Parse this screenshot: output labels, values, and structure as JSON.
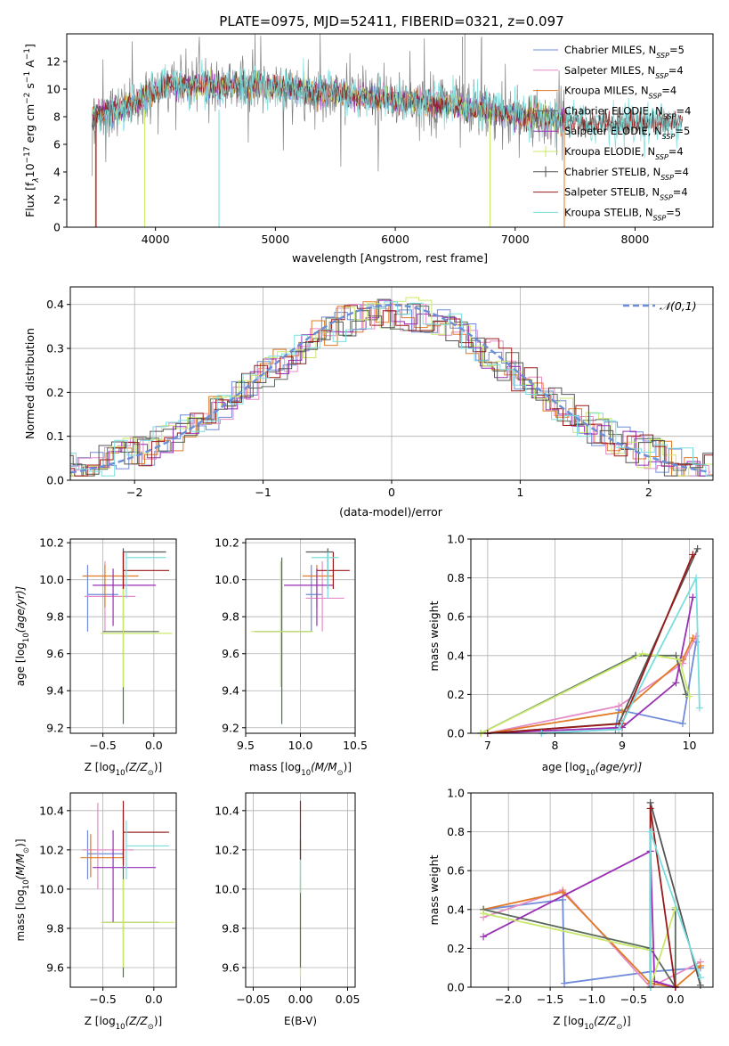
{
  "figure": {
    "title": "PLATE=0975, MJD=52411, FIBERID=0321, z=0.097"
  },
  "colors": {
    "chabrier_miles": "#6f8bd9",
    "salpeter_miles": "#e68cc6",
    "kroupa_miles": "#e07a26",
    "chabrier_elodie": "#5b6b5b",
    "salpeter_elodie": "#9a2fb5",
    "kroupa_elodie": "#c9e86a",
    "chabrier_stelib": "#555555",
    "salpeter_stelib": "#9a1a1a",
    "kroupa_stelib": "#79dede",
    "data": "#808080",
    "gauss": "#6a8fd8"
  },
  "chart_data": [
    {
      "id": "spectrum",
      "type": "line",
      "xlabel": "wavelength [Angstrom, rest frame]",
      "ylabel_parts": [
        "Flux [f",
        "λ",
        "10",
        "−17",
        " erg cm",
        "−2",
        " s",
        "−1",
        " A",
        "−1",
        "]"
      ],
      "xlim": [
        3260,
        8650
      ],
      "ylim": [
        0,
        14
      ],
      "xticks": [
        4000,
        5000,
        6000,
        7000,
        8000
      ],
      "yticks": [
        0,
        2,
        4,
        6,
        8,
        10,
        12
      ],
      "legend_position": "upper-right",
      "legend": [
        {
          "key": "chabrier_miles",
          "label": "Chabrier MILES, N",
          "sub": "SSP",
          "suffix": "=5",
          "style": "line"
        },
        {
          "key": "salpeter_miles",
          "label": "Salpeter MILES, N",
          "sub": "SSP",
          "suffix": "=4",
          "style": "line"
        },
        {
          "key": "kroupa_miles",
          "label": "Kroupa MILES, N",
          "sub": "SSP",
          "suffix": "=4",
          "style": "line"
        },
        {
          "key": "chabrier_elodie",
          "label": "Chabrier ELODIE, N",
          "sub": "SSP",
          "suffix": "=4",
          "style": "cross"
        },
        {
          "key": "salpeter_elodie",
          "label": "Salpeter ELODIE, N",
          "sub": "SSP",
          "suffix": "=5",
          "style": "cross"
        },
        {
          "key": "kroupa_elodie",
          "label": "Kroupa ELODIE, N",
          "sub": "SSP",
          "suffix": "=4",
          "style": "cross"
        },
        {
          "key": "chabrier_stelib",
          "label": "Chabrier STELIB, N",
          "sub": "SSP",
          "suffix": "=4",
          "style": "cross"
        },
        {
          "key": "salpeter_stelib",
          "label": "Salpeter STELIB, N",
          "sub": "SSP",
          "suffix": "=4",
          "style": "line"
        },
        {
          "key": "kroupa_stelib",
          "label": "Kroupa STELIB, N",
          "sub": "SSP",
          "suffix": "=5",
          "style": "line"
        }
      ],
      "continuum": [
        [
          3500,
          8.0
        ],
        [
          3600,
          8.4
        ],
        [
          3800,
          8.8
        ],
        [
          3950,
          9.6
        ],
        [
          4100,
          10.4
        ],
        [
          4300,
          10.3
        ],
        [
          4600,
          10.3
        ],
        [
          4900,
          10.2
        ],
        [
          5200,
          9.9
        ],
        [
          5600,
          9.6
        ],
        [
          6000,
          9.2
        ],
        [
          6400,
          8.9
        ],
        [
          6800,
          8.4
        ],
        [
          7200,
          7.9
        ],
        [
          7600,
          7.5
        ],
        [
          8000,
          7.6
        ],
        [
          8400,
          7.6
        ]
      ],
      "noise_amplitude": 1.6,
      "model_noise_amplitude": 0.6,
      "data_spikes": [
        [
          6560,
          13.8
        ],
        [
          6580,
          14
        ],
        [
          6720,
          13.8
        ]
      ],
      "model_drops": [
        {
          "x": 3500,
          "key": "kroupa_miles"
        },
        {
          "x": 3505,
          "key": "salpeter_stelib"
        },
        {
          "x": 3910,
          "key": "kroupa_elodie"
        },
        {
          "x": 4530,
          "key": "kroupa_stelib"
        },
        {
          "x": 6790,
          "key": "kroupa_elodie"
        },
        {
          "x": 7410,
          "key": "kroupa_miles"
        }
      ],
      "data_xrange": [
        3470,
        7420
      ],
      "model_xrange": [
        3470,
        8400
      ]
    },
    {
      "id": "residuals",
      "type": "step",
      "xlabel": "(data-model)/error",
      "ylabel": "Normed distribution",
      "xlim": [
        -2.5,
        2.5
      ],
      "ylim": [
        0,
        0.44
      ],
      "xticks": [
        -2,
        -1,
        0,
        1,
        2
      ],
      "yticks": [
        0,
        0.1,
        0.2,
        0.3,
        0.4
      ],
      "legend": "𝒩(0,1)",
      "legend_position": "upper-right",
      "bin_width": 0.1,
      "gauss_sigma": 1.0
    },
    {
      "id": "age_vs_Z",
      "type": "errorbar",
      "xlabel_parts": [
        "Z [log",
        "10",
        "(Z/Z",
        "⊙",
        ")]"
      ],
      "ylabel_parts": [
        "age  [log",
        "10",
        "(age/yr)]"
      ],
      "xlim": [
        -0.82,
        0.22
      ],
      "ylim": [
        9.17,
        10.22
      ],
      "xticks": [
        -0.5,
        0.0
      ],
      "yticks": [
        9.2,
        9.4,
        9.6,
        9.8,
        10.0,
        10.2
      ],
      "points": [
        {
          "key": "chabrier_miles",
          "x": -0.65,
          "y": 9.92,
          "xl": -0.65,
          "xh": -0.35,
          "yl": 9.72,
          "yh": 10.08
        },
        {
          "key": "salpeter_miles",
          "x": -0.48,
          "y": 9.91,
          "xl": -0.68,
          "xh": -0.18,
          "yl": 9.72,
          "yh": 10.1
        },
        {
          "key": "kroupa_miles",
          "x": -0.48,
          "y": 10.02,
          "xl": -0.7,
          "xh": -0.15,
          "yl": 9.85,
          "yh": 10.08
        },
        {
          "key": "chabrier_elodie",
          "x": -0.3,
          "y": 9.72,
          "xl": -0.5,
          "xh": 0.05,
          "yl": 9.22,
          "yh": 10.15
        },
        {
          "key": "salpeter_elodie",
          "x": -0.4,
          "y": 9.97,
          "xl": -0.6,
          "xh": 0.02,
          "yl": 9.75,
          "yh": 10.06
        },
        {
          "key": "kroupa_elodie",
          "x": -0.3,
          "y": 9.71,
          "xl": -0.52,
          "xh": 0.18,
          "yl": 9.42,
          "yh": 10.1
        },
        {
          "key": "chabrier_stelib",
          "x": -0.3,
          "y": 10.15,
          "xl": -0.3,
          "xh": 0.12,
          "yl": 9.95,
          "yh": 10.17
        },
        {
          "key": "salpeter_stelib",
          "x": -0.3,
          "y": 10.05,
          "xl": -0.3,
          "xh": 0.15,
          "yl": 9.95,
          "yh": 10.15
        },
        {
          "key": "kroupa_stelib",
          "x": -0.27,
          "y": 10.12,
          "xl": -0.27,
          "xh": 0.12,
          "yl": 9.9,
          "yh": 10.15
        }
      ]
    },
    {
      "id": "age_vs_mass",
      "type": "errorbar",
      "xlabel_parts": [
        "mass [log",
        "10",
        "(M/M",
        "⊙",
        ")]"
      ],
      "ylabel_parts": [],
      "xlim": [
        9.5,
        10.5
      ],
      "ylim": [
        9.17,
        10.22
      ],
      "xticks": [
        9.5,
        10.0,
        10.5
      ],
      "yticks": [
        9.2,
        9.4,
        9.6,
        9.8,
        10.0,
        10.2
      ],
      "points": [
        {
          "key": "chabrier_miles",
          "x": 10.1,
          "y": 9.92,
          "xl": 10.05,
          "xh": 10.2,
          "yl": 9.72,
          "yh": 10.08
        },
        {
          "key": "salpeter_miles",
          "x": 10.2,
          "y": 9.9,
          "xl": 10.05,
          "xh": 10.4,
          "yl": 9.72,
          "yh": 10.1
        },
        {
          "key": "kroupa_miles",
          "x": 10.15,
          "y": 10.02,
          "xl": 10.02,
          "xh": 10.3,
          "yl": 9.85,
          "yh": 10.08
        },
        {
          "key": "chabrier_elodie",
          "x": 9.83,
          "y": 9.72,
          "xl": 9.58,
          "xh": 10.1,
          "yl": 9.22,
          "yh": 10.12
        },
        {
          "key": "salpeter_elodie",
          "x": 10.15,
          "y": 9.97,
          "xl": 9.85,
          "xh": 10.3,
          "yl": 9.75,
          "yh": 10.06
        },
        {
          "key": "kroupa_elodie",
          "x": 9.82,
          "y": 9.72,
          "xl": 9.55,
          "xh": 10.12,
          "yl": 9.42,
          "yh": 10.1
        },
        {
          "key": "chabrier_stelib",
          "x": 10.25,
          "y": 10.15,
          "xl": 10.05,
          "xh": 10.3,
          "yl": 9.95,
          "yh": 10.17
        },
        {
          "key": "salpeter_stelib",
          "x": 10.3,
          "y": 10.05,
          "xl": 10.15,
          "xh": 10.45,
          "yl": 9.95,
          "yh": 10.15
        },
        {
          "key": "kroupa_stelib",
          "x": 10.25,
          "y": 10.12,
          "xl": 10.1,
          "xh": 10.35,
          "yl": 9.9,
          "yh": 10.15
        }
      ]
    },
    {
      "id": "weight_vs_age",
      "type": "line",
      "xlabel_parts": [
        "age  [log",
        "10",
        "(age/yr)]"
      ],
      "ylabel": "mass weight",
      "xlim": [
        6.75,
        10.35
      ],
      "ylim": [
        0,
        1.0
      ],
      "xticks": [
        7,
        8,
        9,
        10
      ],
      "yticks": [
        0.0,
        0.2,
        0.4,
        0.6,
        0.8,
        1.0
      ],
      "series": [
        {
          "key": "chabrier_miles",
          "x": [
            7.8,
            8.9,
            8.95,
            9.9,
            10.1
          ],
          "y": [
            0.0,
            0.02,
            0.12,
            0.05,
            0.47
          ]
        },
        {
          "key": "salpeter_miles",
          "x": [
            7.0,
            8.95,
            9.9,
            10.1
          ],
          "y": [
            0.0,
            0.14,
            0.36,
            0.5
          ]
        },
        {
          "key": "kroupa_miles",
          "x": [
            7.0,
            9.0,
            9.9,
            10.05
          ],
          "y": [
            0.0,
            0.11,
            0.38,
            0.49
          ]
        },
        {
          "key": "chabrier_elodie",
          "x": [
            6.9,
            9.2,
            9.8,
            9.95
          ],
          "y": [
            0.0,
            0.4,
            0.4,
            0.2
          ]
        },
        {
          "key": "salpeter_elodie",
          "x": [
            7.0,
            9.0,
            9.8,
            10.05
          ],
          "y": [
            0.0,
            0.03,
            0.26,
            0.7
          ]
        },
        {
          "key": "kroupa_elodie",
          "x": [
            6.9,
            9.3,
            9.85,
            10.0
          ],
          "y": [
            0.0,
            0.41,
            0.38,
            0.19
          ]
        },
        {
          "key": "chabrier_stelib",
          "x": [
            7.0,
            8.95,
            10.12
          ],
          "y": [
            0.0,
            0.05,
            0.95
          ]
        },
        {
          "key": "salpeter_stelib",
          "x": [
            7.0,
            9.0,
            10.05
          ],
          "y": [
            0.0,
            0.05,
            0.92
          ]
        },
        {
          "key": "kroupa_stelib",
          "x": [
            7.8,
            8.95,
            10.1,
            10.15
          ],
          "y": [
            0.0,
            0.02,
            0.8,
            0.13
          ]
        }
      ]
    },
    {
      "id": "mass_vs_Z",
      "type": "errorbar",
      "xlabel_parts": [
        "Z [log",
        "10",
        "(Z/Z",
        "⊙",
        ")]"
      ],
      "ylabel_parts": [
        "mass [log",
        "10",
        "(M/M",
        "⊙",
        ")]"
      ],
      "xlim": [
        -0.82,
        0.22
      ],
      "ylim": [
        9.5,
        10.49
      ],
      "xticks": [
        -0.5,
        0.0
      ],
      "yticks": [
        9.6,
        9.8,
        10.0,
        10.2,
        10.4
      ],
      "points": [
        {
          "key": "chabrier_miles",
          "x": -0.65,
          "y": 10.18,
          "xl": -0.65,
          "xh": -0.3,
          "yl": 10.05,
          "yh": 10.3
        },
        {
          "key": "salpeter_miles",
          "x": -0.55,
          "y": 10.2,
          "xl": -0.7,
          "xh": -0.2,
          "yl": 10.0,
          "yh": 10.44
        },
        {
          "key": "kroupa_miles",
          "x": -0.62,
          "y": 10.16,
          "xl": -0.72,
          "xh": -0.3,
          "yl": 10.06,
          "yh": 10.28
        },
        {
          "key": "chabrier_elodie",
          "x": -0.3,
          "y": 9.83,
          "xl": -0.5,
          "xh": 0.05,
          "yl": 9.55,
          "yh": 10.25
        },
        {
          "key": "salpeter_elodie",
          "x": -0.4,
          "y": 10.11,
          "xl": -0.6,
          "xh": 0.02,
          "yl": 9.83,
          "yh": 10.3
        },
        {
          "key": "kroupa_elodie",
          "x": -0.3,
          "y": 9.83,
          "xl": -0.52,
          "xh": 0.2,
          "yl": 9.6,
          "yh": 10.05
        },
        {
          "key": "chabrier_stelib",
          "x": -0.3,
          "y": 10.29,
          "xl": -0.3,
          "xh": 0.12,
          "yl": 10.15,
          "yh": 10.4
        },
        {
          "key": "salpeter_stelib",
          "x": -0.3,
          "y": 10.29,
          "xl": -0.3,
          "xh": 0.15,
          "yl": 10.12,
          "yh": 10.45
        },
        {
          "key": "kroupa_stelib",
          "x": -0.27,
          "y": 10.22,
          "xl": -0.27,
          "xh": 0.15,
          "yl": 10.05,
          "yh": 10.35
        }
      ]
    },
    {
      "id": "mass_vs_ebv",
      "type": "errorbar",
      "xlabel": "E(B-V)",
      "xlim": [
        -0.058,
        0.058
      ],
      "ylim": [
        9.5,
        10.49
      ],
      "xticks": [
        -0.05,
        0.0,
        0.05
      ],
      "yticks": [
        9.6,
        9.8,
        10.0,
        10.2,
        10.4
      ],
      "points": [
        {
          "key": "kroupa_elodie",
          "x": 0.0,
          "y": 9.83,
          "xl": 0.0,
          "xh": 0.0,
          "yl": 9.55,
          "yh": 10.05
        },
        {
          "key": "chabrier_elodie",
          "x": 0.0,
          "y": 9.83,
          "xl": 0.0,
          "xh": 0.0,
          "yl": 9.6,
          "yh": 10.25
        },
        {
          "key": "kroupa_stelib",
          "x": 0.0,
          "y": 10.22,
          "xl": 0.0,
          "xh": 0.0,
          "yl": 9.98,
          "yh": 10.33
        },
        {
          "key": "salpeter_stelib",
          "x": 0.0,
          "y": 10.3,
          "xl": 0.0,
          "xh": 0.0,
          "yl": 10.15,
          "yh": 10.45
        }
      ]
    },
    {
      "id": "weight_vs_Z",
      "type": "line",
      "xlabel_parts": [
        "Z [log",
        "10",
        "(Z/Z",
        "⊙",
        ")]"
      ],
      "ylabel": "mass weight",
      "xlim": [
        -2.45,
        0.45
      ],
      "ylim": [
        0,
        1.0
      ],
      "xticks": [
        -2.0,
        -1.5,
        -1.0,
        -0.5,
        0.0
      ],
      "yticks": [
        0.0,
        0.2,
        0.4,
        0.6,
        0.8,
        1.0
      ],
      "series": [
        {
          "key": "chabrier_miles",
          "x": [
            -2.3,
            -1.35,
            -1.33,
            -0.3,
            0.3
          ],
          "y": [
            0.4,
            0.45,
            0.02,
            0.08,
            0.1
          ]
        },
        {
          "key": "salpeter_miles",
          "x": [
            -2.3,
            -1.35,
            -0.3,
            0.3
          ],
          "y": [
            0.36,
            0.5,
            0.0,
            0.13
          ]
        },
        {
          "key": "kroupa_miles",
          "x": [
            -2.3,
            -1.35,
            -0.3,
            0.0,
            0.3
          ],
          "y": [
            0.4,
            0.49,
            0.02,
            0.0,
            0.11
          ]
        },
        {
          "key": "chabrier_elodie",
          "x": [
            -2.3,
            -0.3,
            0.0,
            0.0
          ],
          "y": [
            0.4,
            0.2,
            0.0,
            0.4
          ]
        },
        {
          "key": "salpeter_elodie",
          "x": [
            -2.3,
            -0.3,
            -0.25,
            0.0
          ],
          "y": [
            0.26,
            0.7,
            0.03,
            0.0
          ]
        },
        {
          "key": "kroupa_elodie",
          "x": [
            -2.3,
            -0.3,
            -0.3,
            0.0
          ],
          "y": [
            0.38,
            0.19,
            0.0,
            0.41
          ]
        },
        {
          "key": "chabrier_stelib",
          "x": [
            -0.3,
            -0.3,
            0.3
          ],
          "y": [
            0.0,
            0.95,
            0.01
          ]
        },
        {
          "key": "salpeter_stelib",
          "x": [
            -0.3,
            -0.3,
            0.0
          ],
          "y": [
            0.0,
            0.92,
            0.0
          ]
        },
        {
          "key": "kroupa_stelib",
          "x": [
            -0.3,
            -0.3,
            0.3
          ],
          "y": [
            0.0,
            0.8,
            0.05
          ]
        }
      ]
    }
  ]
}
